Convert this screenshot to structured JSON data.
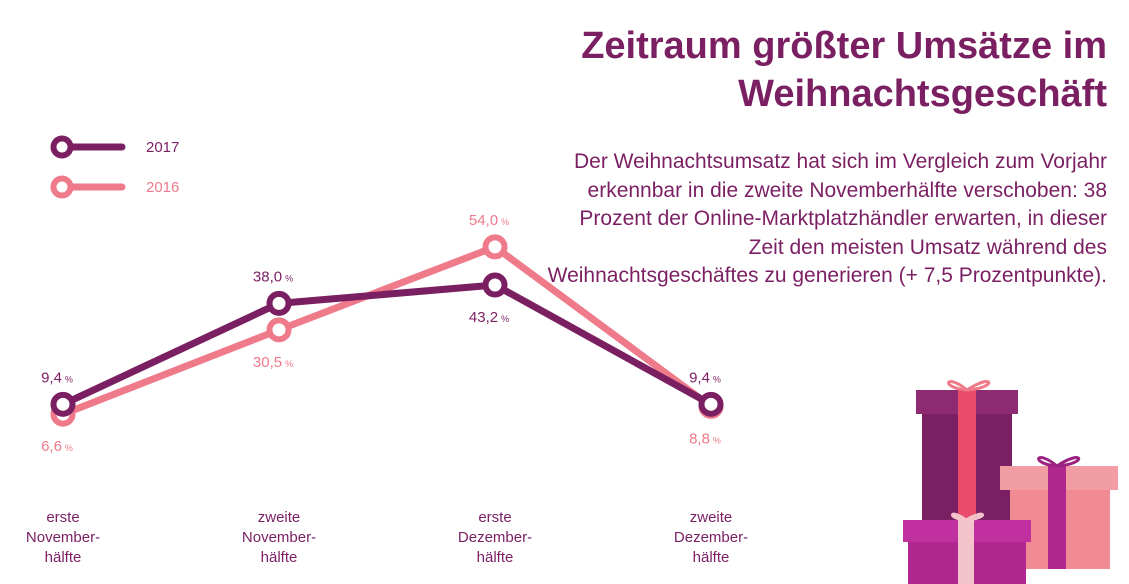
{
  "header": {
    "title_line1": "Zeitraum größter Umsätze im",
    "title_line2": "Weihnachtsgeschäft",
    "description": "Der Weihnachtsumsatz hat sich im Vergleich zum Vorjahr erkennbar in die zweite Novemberhälfte verschoben: 38 Prozent der Online-Marktplatzhändler erwarten, in dieser Zeit den meisten Umsatz während des Weihnachtsgeschäftes zu generieren (+ 7,5 Prozentpunkte)."
  },
  "colors": {
    "s2017": "#7b1f63",
    "s2016": "#ee7a8a",
    "text": "#7b1f63"
  },
  "chart_data": {
    "type": "line",
    "title": "Zeitraum größter Umsätze im Weihnachtsgeschäft",
    "categories": [
      [
        "erste",
        "November-",
        "hälfte"
      ],
      [
        "zweite",
        "November-",
        "hälfte"
      ],
      [
        "erste",
        "Dezember-",
        "hälfte"
      ],
      [
        "zweite",
        "Dezember-",
        "hälfte"
      ]
    ],
    "series": [
      {
        "name": "2017",
        "values": [
          9.4,
          38.0,
          43.2,
          9.4
        ],
        "labels": [
          "9,4",
          "38,0",
          "43,2",
          "9,4"
        ]
      },
      {
        "name": "2016",
        "values": [
          6.6,
          30.5,
          54.0,
          8.8
        ],
        "labels": [
          "6,6",
          "30,5",
          "54,0",
          "8,8"
        ]
      }
    ],
    "unit": "%",
    "legend_position": "top-left",
    "grid": false
  },
  "illustration": {
    "name": "gift-boxes"
  }
}
